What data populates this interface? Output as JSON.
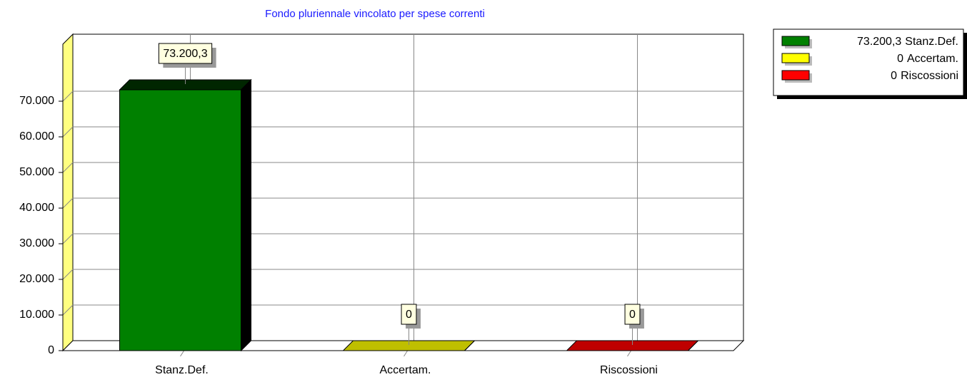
{
  "chart_data": {
    "type": "bar3d",
    "title": "Fondo pluriennale vincolato per spese correnti",
    "categories": [
      "Stanz.Def.",
      "Accertam.",
      "Riscossioni"
    ],
    "values": [
      73200.3,
      0,
      0
    ],
    "value_labels": [
      "73.200,3",
      "0",
      "0"
    ],
    "colors": [
      "#008000",
      "#ffff00",
      "#ff0000"
    ],
    "ylim": [
      0,
      86000
    ],
    "yticks": [
      0,
      {
        "value": 10000,
        "label": "10.000"
      },
      {
        "value": 20000,
        "label": "20.000"
      },
      {
        "value": 30000,
        "label": "30.000"
      },
      {
        "value": 40000,
        "label": "40.000"
      },
      {
        "value": 50000,
        "label": "50.000"
      },
      {
        "value": 60000,
        "label": "60.000"
      },
      {
        "value": 70000,
        "label": "70.000"
      }
    ],
    "grid": true,
    "legend": "upper right"
  }
}
